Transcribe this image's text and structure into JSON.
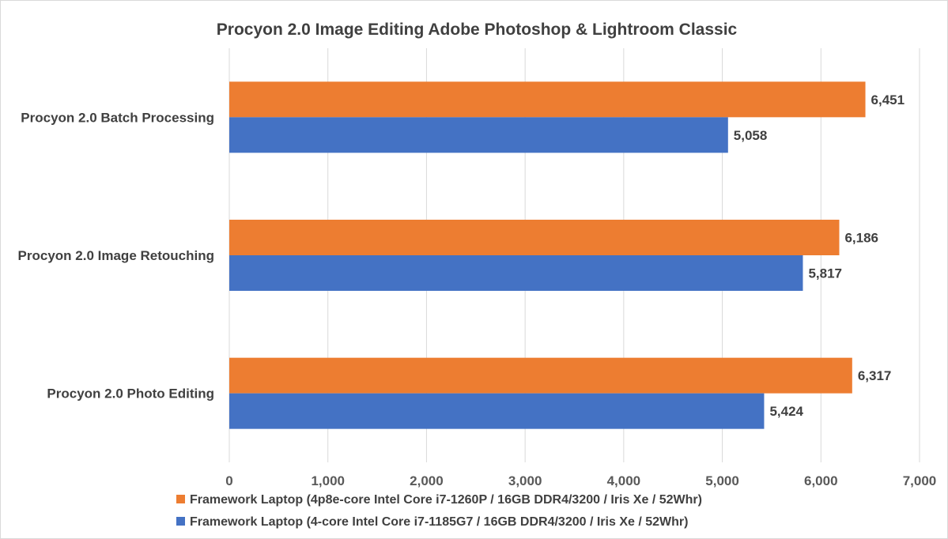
{
  "chart_data": {
    "type": "bar",
    "orientation": "horizontal",
    "title": "Procyon 2.0 Image Editing Adobe Photoshop & Lightroom Classic",
    "xlabel": "",
    "ylabel": "",
    "categories": [
      "Procyon 2.0 Batch Processing",
      "Procyon 2.0 Image Retouching",
      "Procyon 2.0 Photo Editing"
    ],
    "series": [
      {
        "name": "Framework Laptop (4p8e-core Intel Core i7-1260P / 16GB DDR4/3200 / Iris Xe /  52Whr)",
        "color": "#ED7D31",
        "values": [
          6451,
          6186,
          6317
        ],
        "value_labels": [
          "6,451",
          "6,186",
          "6,317"
        ]
      },
      {
        "name": "Framework Laptop (4-core Intel Core i7-1185G7 / 16GB DDR4/3200 / Iris Xe /  52Whr)",
        "color": "#4472C4",
        "values": [
          5058,
          5817,
          5424
        ],
        "value_labels": [
          "5,058",
          "5,817",
          "5,424"
        ]
      }
    ],
    "xlim": [
      0,
      7000
    ],
    "xticks": [
      0,
      1000,
      2000,
      3000,
      4000,
      5000,
      6000,
      7000
    ],
    "xtick_labels": [
      "0",
      "1,000",
      "2,000",
      "3,000",
      "4,000",
      "5,000",
      "6,000",
      "7,000"
    ],
    "grid": true,
    "legend_position": "bottom"
  }
}
